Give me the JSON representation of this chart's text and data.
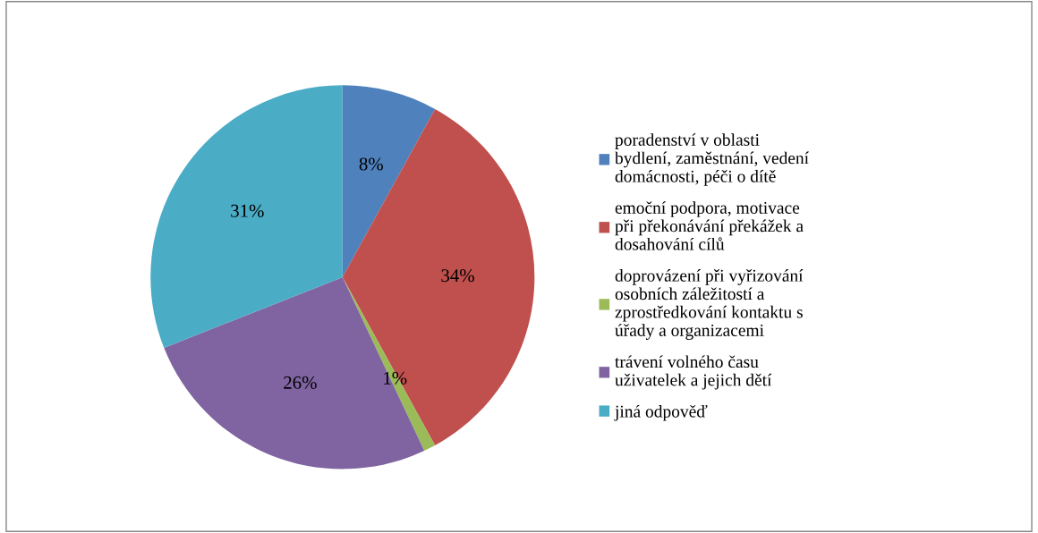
{
  "chart_data": {
    "type": "pie",
    "categories": [
      "poradenství v oblasti\nbydlení, zaměstnání, vedení\ndomácnosti, péči o dítě",
      "emoční podpora, motivace\npři překonávání překážek a\ndosahování cílů",
      "doprovázení při vyřizování\nosobních záležitostí a\nzprostředkování kontaktu s\núřady a organizacemi",
      "trávení volného času\nuživatelek a jejich dětí",
      "jiná odpověď"
    ],
    "values": [
      8,
      34,
      1,
      26,
      31
    ],
    "colors": [
      "#4f81bd",
      "#c0504d",
      "#9bbb59",
      "#8064a2",
      "#4bacc6"
    ],
    "value_labels": [
      "8%",
      "34%",
      "1%",
      "26%",
      "31%"
    ],
    "legend": "right"
  }
}
